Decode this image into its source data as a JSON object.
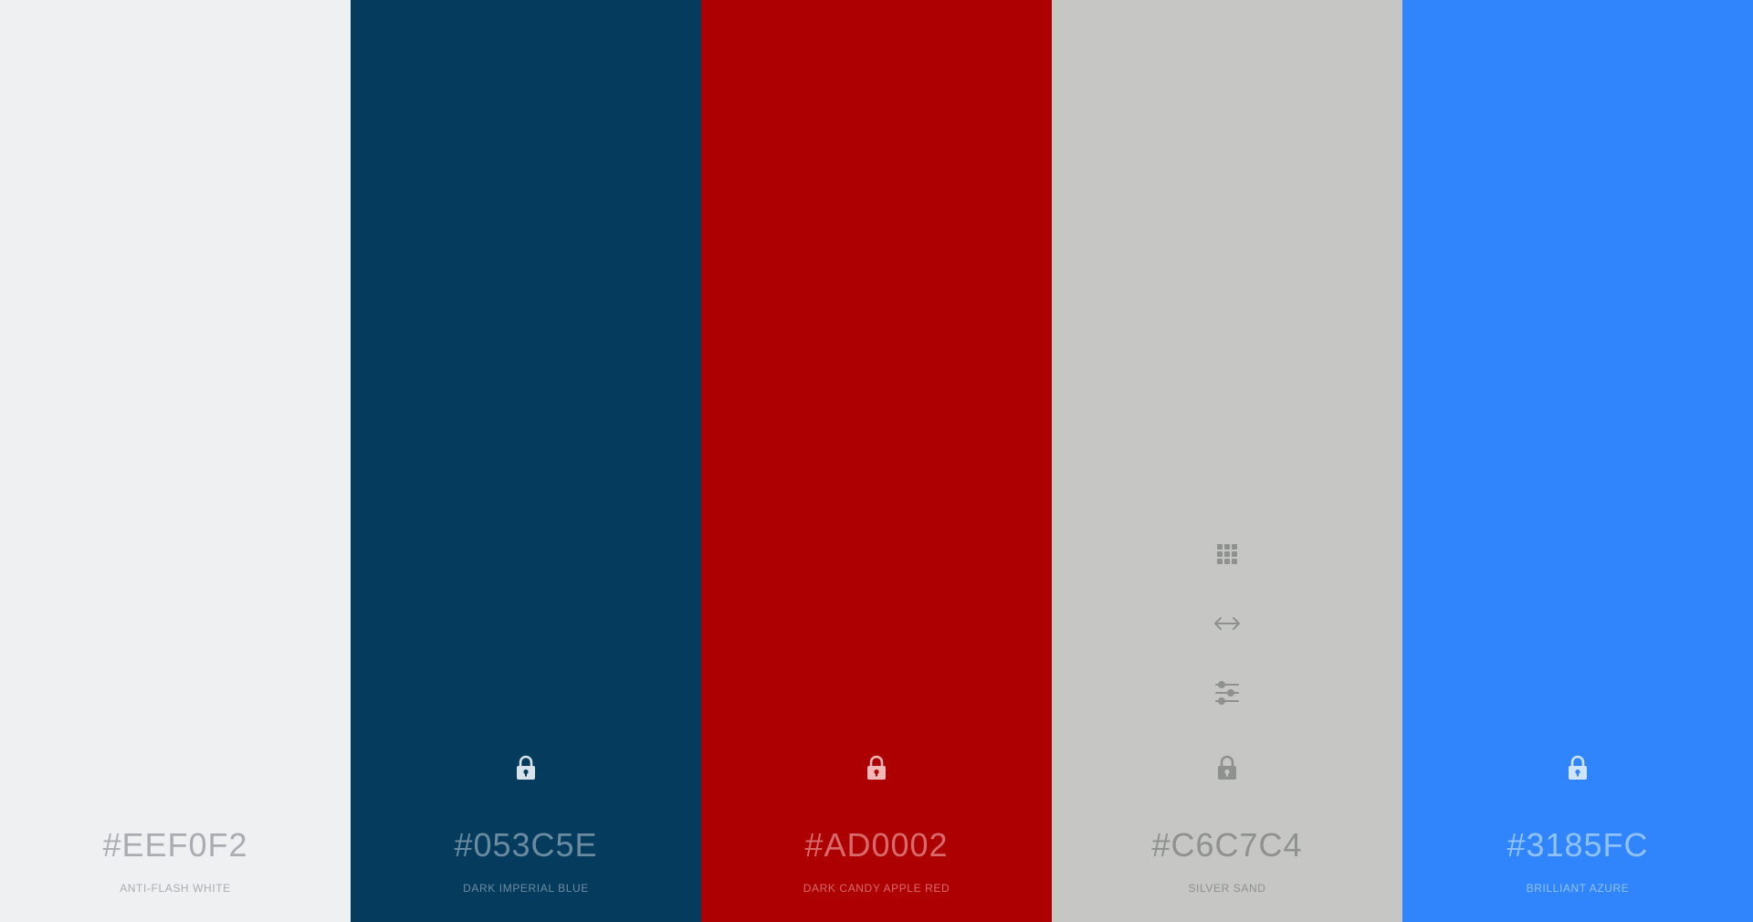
{
  "swatches": [
    {
      "hex": "#EEF0F2",
      "name": "ANTI-FLASH WHITE",
      "background": "#EEF0F2",
      "text_color": "#a9adb1",
      "lock_color": "",
      "show_lock": false,
      "show_tools": false
    },
    {
      "hex": "#053C5E",
      "name": "DARK IMPERIAL BLUE",
      "background": "#053C5E",
      "text_color": "#6b8ba0",
      "lock_color": "#d8e2ea",
      "show_lock": true,
      "show_tools": false
    },
    {
      "hex": "#AD0002",
      "name": "DARK CANDY APPLE RED",
      "background": "#AD0002",
      "text_color": "#d86a6b",
      "lock_color": "#f5b7b8",
      "show_lock": true,
      "show_tools": false
    },
    {
      "hex": "#C6C7C4",
      "name": "SILVER SAND",
      "background": "#C6C7C4",
      "text_color": "#8f9191",
      "lock_color": "#8f9191",
      "show_lock": true,
      "show_tools": true
    },
    {
      "hex": "#3185FC",
      "name": "BRILLIANT AZURE",
      "background": "#3185FC",
      "text_color": "#8fc2ff",
      "lock_color": "#cfe4ff",
      "show_lock": true,
      "show_tools": false
    }
  ],
  "tools": {
    "icons": [
      "grid-icon",
      "drag-icon",
      "sliders-icon"
    ]
  },
  "lock_icon": "lock-icon"
}
